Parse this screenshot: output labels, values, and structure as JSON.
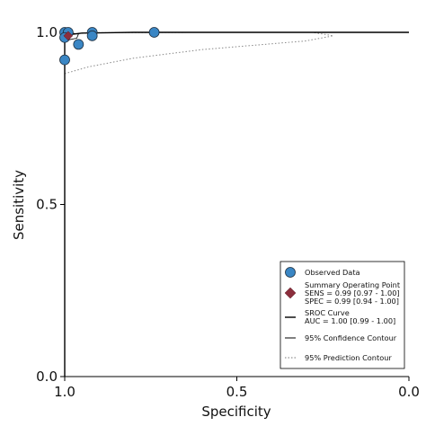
{
  "chart_data": {
    "type": "scatter",
    "xlabel": "Specificity",
    "ylabel": "Sensitivity",
    "x_reversed": true,
    "xlim": [
      1.0,
      0.0
    ],
    "ylim": [
      0.0,
      1.0
    ],
    "x_ticks": [
      "1.0",
      "0.5",
      "0.0"
    ],
    "x_tick_values": [
      1.0,
      0.5,
      0.0
    ],
    "y_ticks": [
      "0.0",
      "0.5",
      "1.0"
    ],
    "y_tick_values": [
      0.0,
      0.5,
      1.0
    ],
    "grid": false,
    "legend_position": "bottom-right",
    "colors": {
      "observed": "#3a86c4",
      "summary": "#8b2e3c",
      "curve": "#000000",
      "prediction": "#888888"
    },
    "observed_data": [
      {
        "x": 1.0,
        "y": 1.0
      },
      {
        "x": 0.99,
        "y": 1.0
      },
      {
        "x": 0.92,
        "y": 1.0
      },
      {
        "x": 0.74,
        "y": 1.0
      },
      {
        "x": 1.0,
        "y": 0.985
      },
      {
        "x": 0.92,
        "y": 0.99
      },
      {
        "x": 0.96,
        "y": 0.965
      },
      {
        "x": 1.0,
        "y": 0.92
      }
    ],
    "summary_point": {
      "x": 0.99,
      "y": 0.99
    },
    "sroc_curve": {
      "x": [
        1.0,
        1.0,
        0.99,
        0.95,
        0.8,
        0.5,
        0.2,
        0.0
      ],
      "y": [
        0.0,
        0.97,
        0.993,
        0.998,
        1.0,
        1.0,
        1.0,
        1.0
      ]
    },
    "confidence_contour": {
      "x": [
        1.0,
        0.985,
        0.96,
        0.965,
        0.99,
        1.0
      ],
      "y": [
        0.997,
        0.999,
        0.995,
        0.983,
        0.978,
        0.99
      ]
    },
    "prediction_contour": {
      "x": [
        1.0,
        0.93,
        0.8,
        0.6,
        0.3,
        0.22,
        0.28,
        0.6,
        0.9,
        1.0
      ],
      "y": [
        0.88,
        0.9,
        0.925,
        0.95,
        0.975,
        0.99,
        1.0,
        1.0,
        0.999,
        0.995
      ]
    },
    "legend": {
      "observed": "Observed Data",
      "summary_title": "Summary Operating Point",
      "summary_sens": "SENS = 0.99 [0.97 - 1.00]",
      "summary_spec": "SPEC = 0.99 [0.94 - 1.00]",
      "sroc_title": "SROC Curve",
      "sroc_auc": "AUC = 1.00 [0.99 - 1.00]",
      "confidence": "95% Confidence Contour",
      "prediction": "95% Prediction Contour"
    }
  }
}
